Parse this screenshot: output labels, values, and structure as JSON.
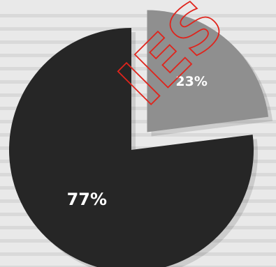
{
  "chart_data": {
    "type": "pie",
    "title": "",
    "labels": [
      "77%",
      "23%"
    ],
    "values": [
      77,
      23
    ],
    "colors": [
      "#262626",
      "#8f8f8f"
    ],
    "exploded": [
      false,
      true
    ],
    "start_angle_deg": 0,
    "direction": "clockwise",
    "data_labels": true,
    "legend": "none"
  },
  "watermark": {
    "text": "IES",
    "color": "#e0241c"
  },
  "colors": {
    "paper": "#e9e9e9",
    "text_shadow": "#bdbdbd"
  }
}
